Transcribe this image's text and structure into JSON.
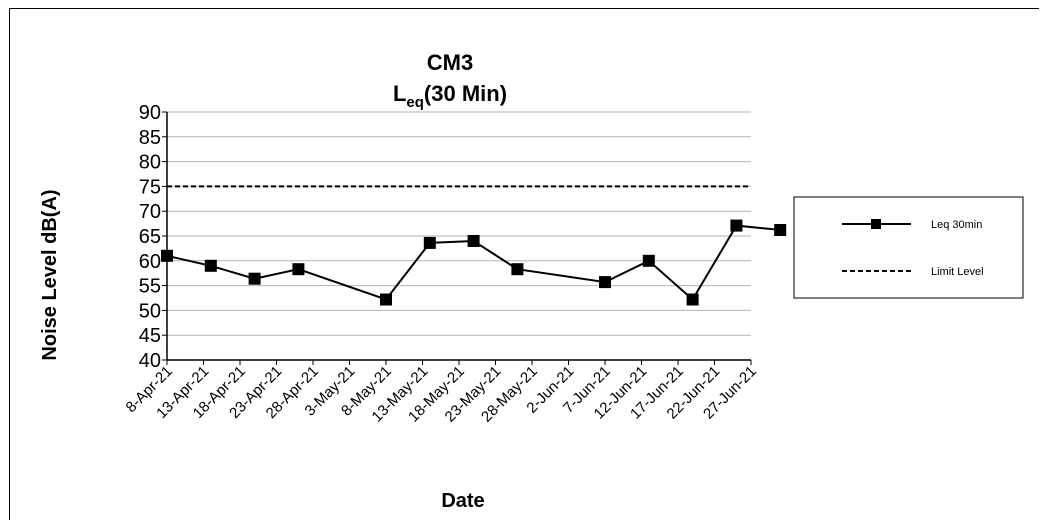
{
  "chart_data": {
    "type": "line",
    "title": "CM3",
    "subtitle": {
      "main": "L",
      "sub": "eq",
      "rest": "(30 Min)"
    },
    "xlabel": "Date",
    "ylabel": "Noise Level dB(A)",
    "ylim": [
      40,
      90
    ],
    "yticks": [
      "90",
      "85",
      "80",
      "75",
      "70",
      "65",
      "60",
      "55",
      "50",
      "45",
      "40"
    ],
    "xlim": [
      "2021-04-08",
      "2021-06-27"
    ],
    "xticks": [
      {
        "date": "2021-04-08",
        "label": "8-Apr-21"
      },
      {
        "date": "2021-04-13",
        "label": "13-Apr-21"
      },
      {
        "date": "2021-04-18",
        "label": "18-Apr-21"
      },
      {
        "date": "2021-04-23",
        "label": "23-Apr-21"
      },
      {
        "date": "2021-04-28",
        "label": "28-Apr-21"
      },
      {
        "date": "2021-05-03",
        "label": "3-May-21"
      },
      {
        "date": "2021-05-08",
        "label": "8-May-21"
      },
      {
        "date": "2021-05-13",
        "label": "13-May-21"
      },
      {
        "date": "2021-05-18",
        "label": "18-May-21"
      },
      {
        "date": "2021-05-23",
        "label": "23-May-21"
      },
      {
        "date": "2021-05-28",
        "label": "28-May-21"
      },
      {
        "date": "2021-06-02",
        "label": "2-Jun-21"
      },
      {
        "date": "2021-06-07",
        "label": "7-Jun-21"
      },
      {
        "date": "2021-06-12",
        "label": "12-Jun-21"
      },
      {
        "date": "2021-06-17",
        "label": "17-Jun-21"
      },
      {
        "date": "2021-06-22",
        "label": "22-Jun-21"
      },
      {
        "date": "2021-06-27",
        "label": "27-Jun-21"
      }
    ],
    "grid": true,
    "legend_position": "right",
    "series": [
      {
        "name": "Leq 30min",
        "color": "#000000",
        "marker": "square",
        "points": [
          {
            "x": "2021-04-08",
            "y": 61.0
          },
          {
            "x": "2021-04-14",
            "y": 59.0
          },
          {
            "x": "2021-04-20",
            "y": 56.4
          },
          {
            "x": "2021-04-26",
            "y": 58.3
          },
          {
            "x": "2021-05-08",
            "y": 52.2
          },
          {
            "x": "2021-05-14",
            "y": 63.6
          },
          {
            "x": "2021-05-20",
            "y": 64.0
          },
          {
            "x": "2021-05-26",
            "y": 58.3
          },
          {
            "x": "2021-06-07",
            "y": 55.7
          },
          {
            "x": "2021-06-13",
            "y": 60.0
          },
          {
            "x": "2021-06-19",
            "y": 52.2
          },
          {
            "x": "2021-06-25",
            "y": 67.1
          },
          {
            "x": "2021-07-01",
            "y": 66.2
          }
        ]
      },
      {
        "name": "Limit Level",
        "color": "#000000",
        "style": "dashed",
        "value": 75
      }
    ]
  }
}
